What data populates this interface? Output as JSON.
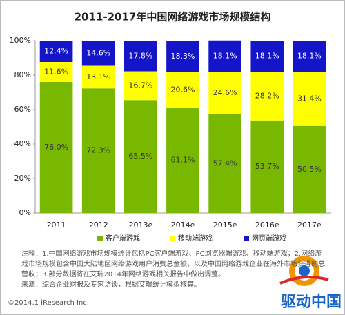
{
  "chart_data": {
    "type": "stacked_bar",
    "title": "2011-2017年中国网络游戏市场规模结构",
    "categories": [
      "2011",
      "2012",
      "2013e",
      "2014e",
      "2015e",
      "2016e",
      "2017e"
    ],
    "series": [
      {
        "name": "客户端游戏",
        "color": "#78b800",
        "values": [
          76.0,
          72.3,
          65.5,
          61.1,
          57.4,
          53.7,
          50.5
        ],
        "value_labels": [
          "76.0%",
          "72.3%",
          "65.5%",
          "61.1%",
          "57.4%",
          "53.7%",
          "50.5%"
        ]
      },
      {
        "name": "移动端游戏",
        "color": "#ffff00",
        "values": [
          11.6,
          13.1,
          16.7,
          20.6,
          24.6,
          28.2,
          31.4
        ],
        "value_labels": [
          "11.6%",
          "13.1%",
          "16.7%",
          "20.6%",
          "24.6%",
          "28.2%",
          "31.4%"
        ]
      },
      {
        "name": "网页端游戏",
        "color": "#1414c8",
        "values": [
          12.4,
          14.6,
          17.8,
          18.3,
          18.1,
          18.1,
          18.1
        ],
        "value_labels": [
          "12.4%",
          "14.6%",
          "17.8%",
          "18.3%",
          "18.1%",
          "18.1%",
          "18.1%"
        ]
      }
    ],
    "ylim": [
      0,
      100
    ],
    "yticks": [
      {
        "value": 0,
        "label": "0%"
      },
      {
        "value": 20,
        "label": "20%"
      },
      {
        "value": 40,
        "label": "40%"
      },
      {
        "value": 60,
        "label": "60%"
      },
      {
        "value": 80,
        "label": "80%"
      },
      {
        "value": 100,
        "label": "100%"
      }
    ],
    "grid": false
  },
  "notes": [
    "注释：1.中国网络游戏市场规模统计包括PC客户端游戏、PC浏览器端游戏、移动端游戏；2.网络游戏市场规模包含中国大陆地区网络游戏用户消费总金额，以及中国网络游戏企业在海外市场获得的总营收；3.部分数据将在艾瑞2014年网络游戏相关报告中做出调整。",
    "来源：综合企业财报及专家访谈，根据艾瑞统计模型核算。"
  ],
  "footer": "©2014.1 iResearch Inc.",
  "watermark": "驱动中国"
}
